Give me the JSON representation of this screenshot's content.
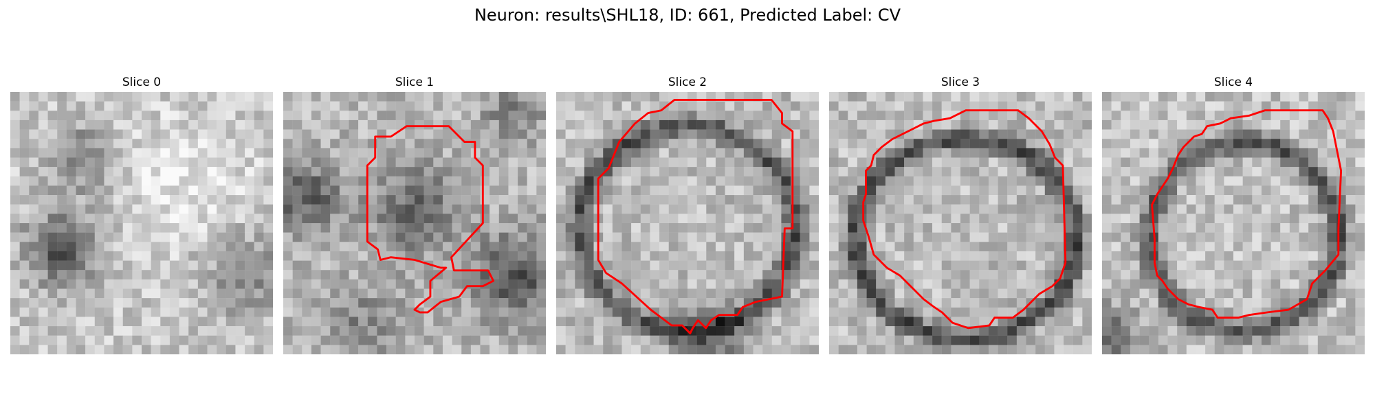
{
  "figure": {
    "title": "Neuron: results\\SHL18, ID: 661, Predicted Label: CV"
  },
  "outline_color": "#ff0000",
  "panels": [
    {
      "title": "Slice 0",
      "has_outline": false
    },
    {
      "title": "Slice 1",
      "has_outline": true
    },
    {
      "title": "Slice 2",
      "has_outline": true
    },
    {
      "title": "Slice 3",
      "has_outline": true
    },
    {
      "title": "Slice 4",
      "has_outline": true
    }
  ]
}
